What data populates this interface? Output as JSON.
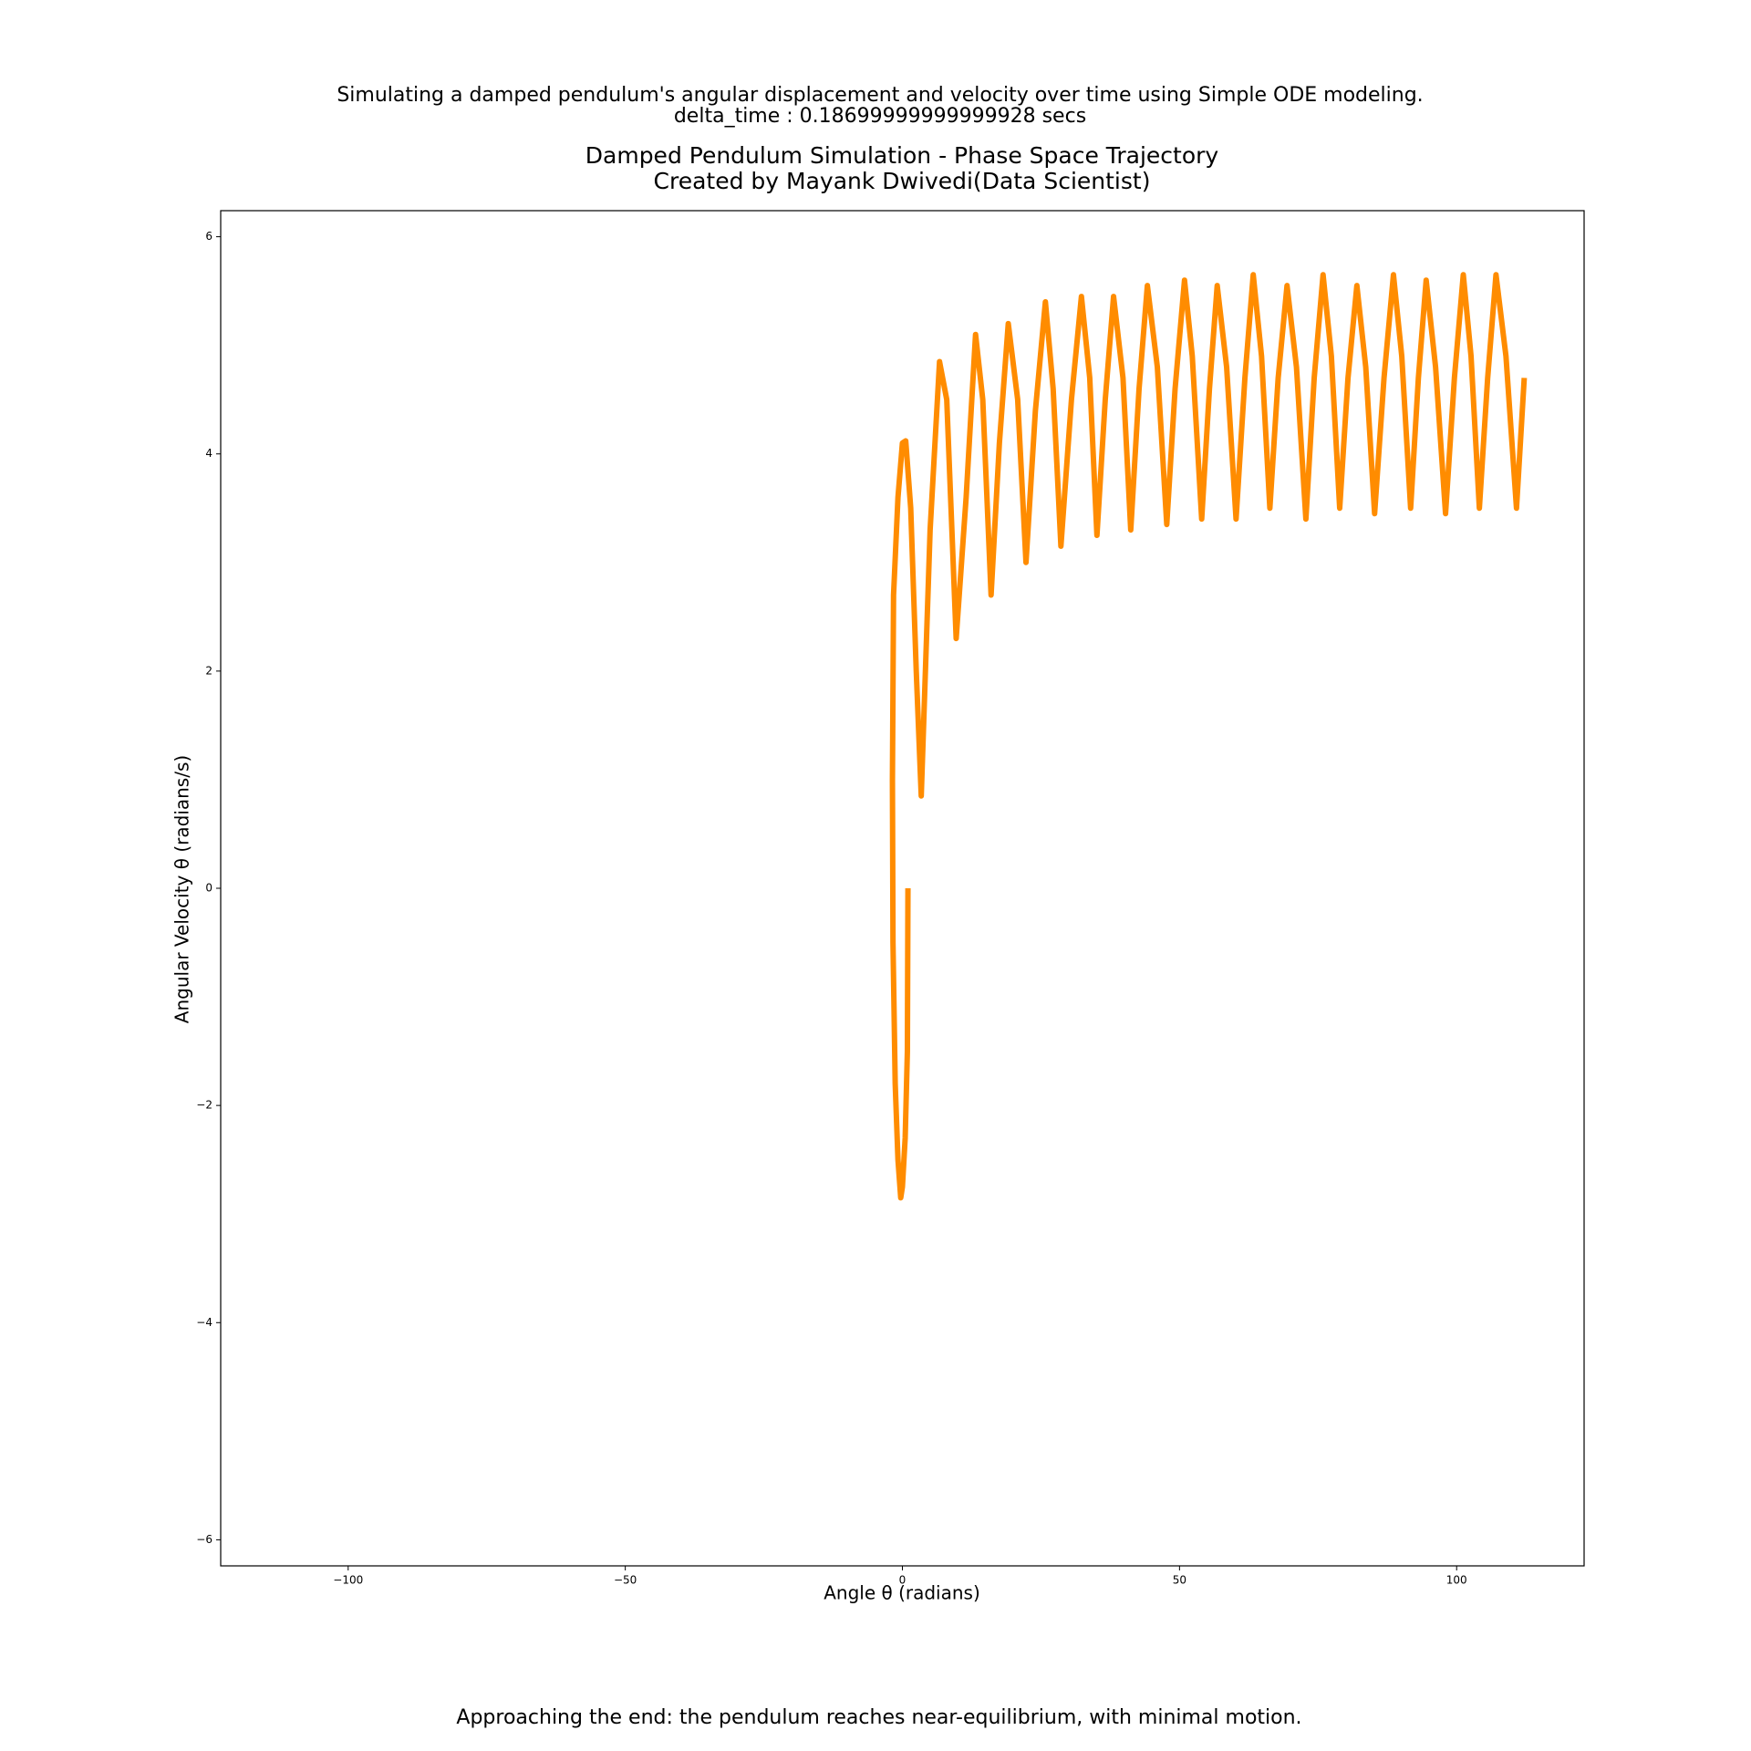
{
  "chart_data": {
    "type": "line",
    "suptitle": [
      "Simulating a damped pendulum's angular displacement and velocity over time using Simple ODE modeling.",
      "delta_time : 0.18699999999999928 secs"
    ],
    "title": [
      "Damped Pendulum Simulation - Phase Space Trajectory",
      "Created by Mayank Dwivedi(Data Scientist)"
    ],
    "x_label": "Angle θ (radians)",
    "y_label": "Angular Velocity θ (radians/s)",
    "annotation": "Approaching the end: the pendulum reaches near-equilibrium, with minimal motion.",
    "annotation_color": "#008000",
    "xlim": [
      -123,
      123
    ],
    "ylim": [
      -6.24,
      6.24
    ],
    "xticks": [
      {
        "value": -100,
        "label": "−100"
      },
      {
        "value": -50,
        "label": "−50"
      },
      0,
      50,
      100
    ],
    "yticks": [
      {
        "value": -6,
        "label": "−6"
      },
      {
        "value": -4,
        "label": "−4"
      },
      {
        "value": -2,
        "label": "−2"
      },
      0,
      2,
      4,
      6
    ],
    "series": [
      {
        "color": "#ff8c00",
        "x": [
          1,
          0.9,
          0.5,
          0,
          -0.3,
          -0.8,
          -1.3,
          -1.7,
          -1.8,
          -1.6,
          -0.8,
          0,
          0.6,
          1.5,
          2.5,
          3.4,
          5.0,
          6.7,
          8.0,
          9.7,
          11.5,
          13.2,
          14.5,
          16,
          17.5,
          19.1,
          20.8,
          22.3,
          24,
          25.8,
          27.2,
          28.6,
          30.5,
          32.3,
          33.8,
          35.1,
          36.6,
          38.1,
          39.8,
          41.2,
          42.7,
          44.2,
          46,
          47.7,
          49.2,
          50.9,
          52.3,
          54,
          55.4,
          56.8,
          58.5,
          60.2,
          61.8,
          63.3,
          64.8,
          66.3,
          67.8,
          69.4,
          71.1,
          72.8,
          74.3,
          75.9,
          77.4,
          78.9,
          80.4,
          82,
          83.6,
          85.2,
          86.9,
          88.6,
          90.1,
          91.7,
          93.1,
          94.5,
          96.2,
          98,
          99.6,
          101.2,
          102.6,
          104.1,
          105.6,
          107.1,
          108.9,
          110.8,
          112.2
        ],
        "values": [
          0,
          -1.5,
          -2.3,
          -2.75,
          -2.85,
          -2.5,
          -1.8,
          -0.5,
          1.0,
          2.7,
          3.6,
          4.1,
          4.12,
          3.5,
          2.0,
          0.85,
          3.3,
          4.85,
          4.5,
          2.3,
          3.6,
          5.1,
          4.5,
          2.7,
          4.1,
          5.2,
          4.5,
          3.0,
          4.4,
          5.4,
          4.6,
          3.15,
          4.5,
          5.45,
          4.7,
          3.25,
          4.5,
          5.45,
          4.7,
          3.3,
          4.6,
          5.55,
          4.8,
          3.35,
          4.6,
          5.6,
          4.9,
          3.4,
          4.6,
          5.55,
          4.8,
          3.4,
          4.7,
          5.65,
          4.9,
          3.5,
          4.7,
          5.55,
          4.8,
          3.4,
          4.7,
          5.65,
          4.9,
          3.5,
          4.7,
          5.55,
          4.8,
          3.45,
          4.7,
          5.65,
          4.9,
          3.5,
          4.7,
          5.6,
          4.8,
          3.45,
          4.7,
          5.65,
          4.9,
          3.5,
          4.7,
          5.65,
          4.9,
          3.5,
          4.7
        ]
      }
    ]
  }
}
